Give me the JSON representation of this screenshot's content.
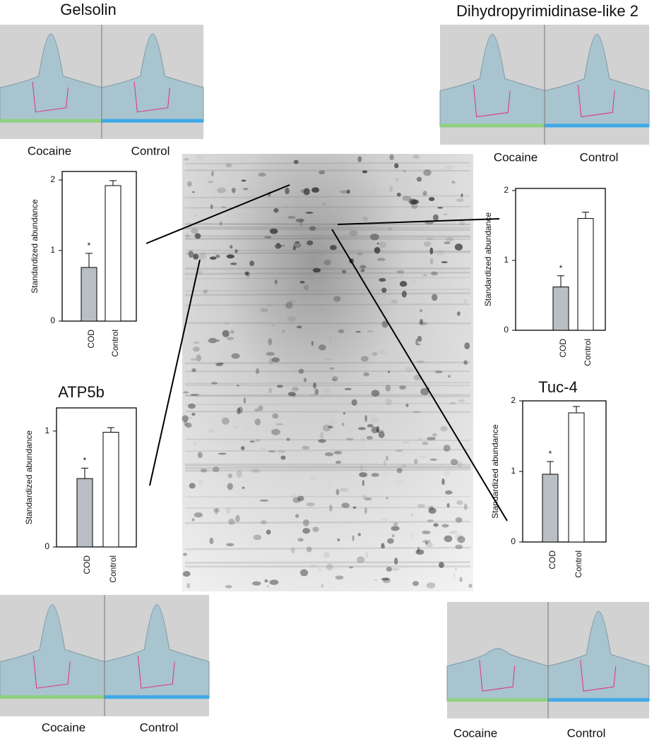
{
  "chart_data": [
    {
      "type": "bar",
      "title": "Gelsolin",
      "surface_labels": [
        "Cocaine",
        "Control"
      ],
      "ylabel": "Standardized abundance",
      "categories": [
        "COD",
        "Control"
      ],
      "values": [
        0.76,
        1.92
      ],
      "errors": [
        0.2,
        0.07
      ],
      "colors": [
        "#b9bfc4",
        "#ffffff"
      ],
      "annotation": "*",
      "ylim": [
        0,
        2.12
      ],
      "yticks": [
        0,
        1,
        2
      ]
    },
    {
      "type": "bar",
      "title": "Dihydropyrimidinase-like 2",
      "surface_labels": [
        "Cocaine",
        "Control"
      ],
      "ylabel": "Standardized abundance",
      "categories": [
        "COD",
        "Control"
      ],
      "values": [
        0.62,
        1.6
      ],
      "errors": [
        0.16,
        0.09
      ],
      "colors": [
        "#b9bfc4",
        "#ffffff"
      ],
      "annotation": "*",
      "ylim": [
        0,
        2.03
      ],
      "yticks": [
        0,
        1,
        2
      ]
    },
    {
      "type": "bar",
      "title": "ATP5b",
      "surface_labels": [
        "Cocaine",
        "Control"
      ],
      "ylabel": "Standardized abundance",
      "categories": [
        "COD",
        "Control"
      ],
      "values": [
        0.59,
        0.99
      ],
      "errors": [
        0.09,
        0.04
      ],
      "colors": [
        "#b9bfc4",
        "#ffffff"
      ],
      "annotation": "*",
      "ylim": [
        0,
        1.2
      ],
      "yticks": [
        0,
        1
      ]
    },
    {
      "type": "bar",
      "title": "Tuc-4",
      "surface_labels": [
        "Cocaine",
        "Control"
      ],
      "ylabel": "Standardized abundance",
      "categories": [
        "COD",
        "Control"
      ],
      "values": [
        0.96,
        1.83
      ],
      "errors": [
        0.18,
        0.09
      ],
      "colors": [
        "#b9bfc4",
        "#ffffff"
      ],
      "annotation": "*",
      "ylim": [
        0,
        2
      ],
      "yticks": [
        0,
        1,
        2
      ]
    }
  ]
}
